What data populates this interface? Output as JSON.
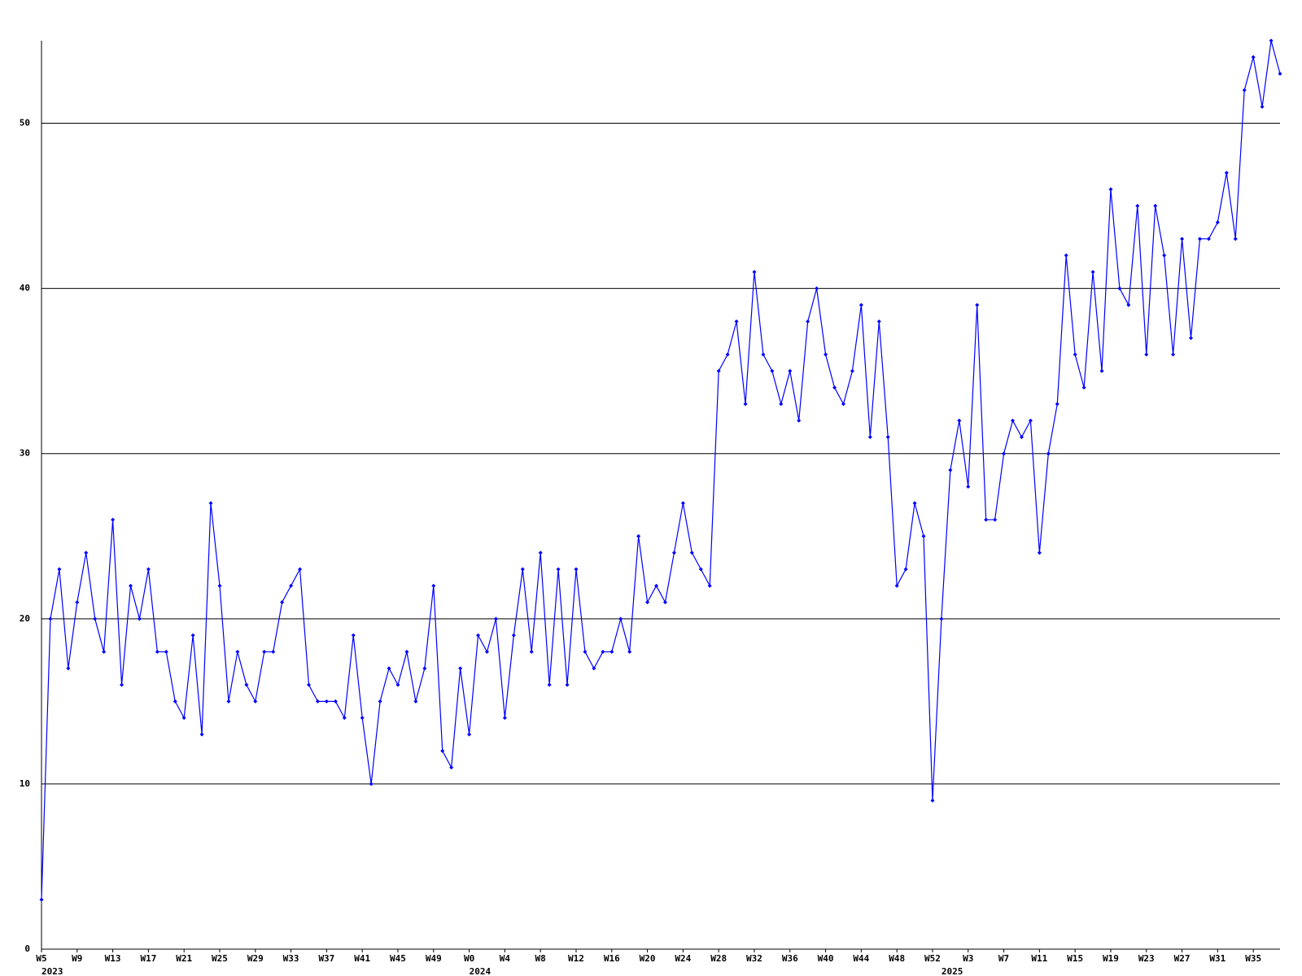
{
  "chart_data": {
    "type": "line",
    "color": "#0000ff",
    "grid": true,
    "ylim": [
      0,
      55
    ],
    "yticks": [
      0,
      10,
      20,
      30,
      40,
      50
    ],
    "categories": [
      "W5",
      null,
      null,
      null,
      "W9",
      null,
      null,
      null,
      "W13",
      null,
      null,
      null,
      "W17",
      null,
      null,
      null,
      "W21",
      null,
      null,
      null,
      "W25",
      null,
      null,
      null,
      "W29",
      null,
      null,
      null,
      "W33",
      null,
      null,
      null,
      "W37",
      null,
      null,
      null,
      "W41",
      null,
      null,
      null,
      "W45",
      null,
      null,
      null,
      "W49",
      null,
      null,
      null,
      "W0",
      null,
      null,
      null,
      "W4",
      null,
      null,
      null,
      "W8",
      null,
      null,
      null,
      "W12",
      null,
      null,
      null,
      "W16",
      null,
      null,
      null,
      "W20",
      null,
      null,
      null,
      "W24",
      null,
      null,
      null,
      "W28",
      null,
      null,
      null,
      "W32",
      null,
      null,
      null,
      "W36",
      null,
      null,
      null,
      "W40",
      null,
      null,
      null,
      "W44",
      null,
      null,
      null,
      "W48",
      null,
      null,
      null,
      "W52",
      null,
      null,
      null,
      "W3",
      null,
      null,
      null,
      "W7",
      null,
      null,
      null,
      "W11",
      null,
      null,
      null,
      "W15",
      null,
      null,
      null,
      "W19",
      null,
      null,
      null,
      "W23",
      null,
      null,
      null,
      "W27",
      null,
      null,
      null,
      "W31",
      null,
      null,
      null,
      "W35",
      null,
      null,
      null
    ],
    "year_categories": [
      "2023",
      null,
      null,
      null,
      null,
      null,
      null,
      null,
      null,
      null,
      null,
      null,
      null,
      null,
      null,
      null,
      null,
      null,
      null,
      null,
      null,
      null,
      null,
      null,
      null,
      null,
      null,
      null,
      null,
      null,
      null,
      null,
      null,
      null,
      null,
      null,
      null,
      null,
      null,
      null,
      null,
      null,
      null,
      null,
      null,
      null,
      null,
      null,
      "2024",
      null,
      null,
      null,
      null,
      null,
      null,
      null,
      null,
      null,
      null,
      null,
      null,
      null,
      null,
      null,
      null,
      null,
      null,
      null,
      null,
      null,
      null,
      null,
      null,
      null,
      null,
      null,
      null,
      null,
      null,
      null,
      null,
      null,
      null,
      null,
      null,
      null,
      null,
      null,
      null,
      null,
      null,
      null,
      null,
      null,
      null,
      null,
      null,
      null,
      null,
      null,
      null,
      "2025",
      null,
      null,
      null,
      null,
      null,
      null,
      null,
      null,
      null,
      null,
      null,
      null,
      null,
      null,
      null,
      null,
      null,
      null,
      null,
      null,
      null,
      null,
      null,
      null,
      null,
      null,
      null,
      null,
      null,
      null,
      null,
      null,
      null,
      null,
      null,
      null,
      null,
      null
    ],
    "values": [
      3,
      20,
      23,
      17,
      21,
      24,
      20,
      18,
      26,
      16,
      22,
      20,
      23,
      18,
      18,
      15,
      14,
      19,
      13,
      27,
      22,
      15,
      18,
      16,
      15,
      18,
      18,
      21,
      22,
      23,
      16,
      15,
      15,
      15,
      14,
      19,
      14,
      10,
      15,
      17,
      16,
      18,
      15,
      17,
      22,
      12,
      11,
      17,
      13,
      19,
      18,
      20,
      14,
      19,
      23,
      18,
      24,
      16,
      23,
      16,
      23,
      18,
      17,
      18,
      18,
      20,
      18,
      25,
      21,
      22,
      21,
      24,
      27,
      24,
      23,
      22,
      35,
      36,
      38,
      33,
      41,
      36,
      35,
      33,
      35,
      32,
      38,
      40,
      36,
      34,
      33,
      35,
      39,
      31,
      38,
      31,
      22,
      23,
      27,
      25,
      9,
      20,
      29,
      32,
      28,
      39,
      26,
      26,
      30,
      32,
      31,
      32,
      24,
      30,
      33,
      42,
      36,
      34,
      41,
      35,
      46,
      40,
      39,
      45,
      36,
      45,
      42,
      36,
      43,
      37,
      43,
      43,
      44,
      47,
      43,
      52,
      54,
      51,
      55,
      53
    ]
  }
}
